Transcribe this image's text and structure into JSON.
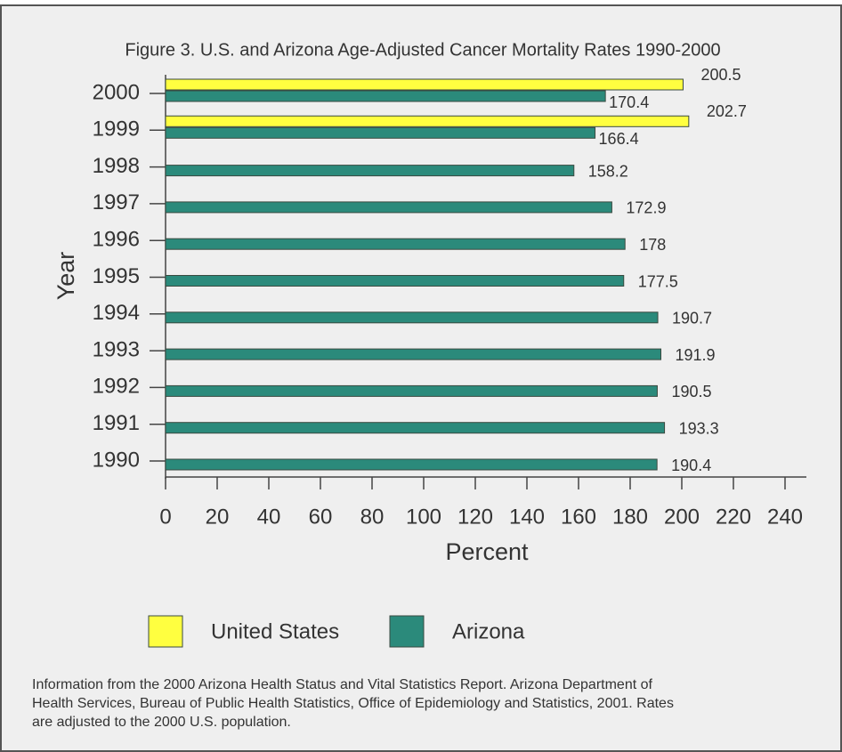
{
  "chart_data": {
    "type": "bar",
    "orientation": "horizontal",
    "title": "Figure 3. U.S. and Arizona Age-Adjusted Cancer Mortality Rates 1990-2000",
    "y_label": "Year",
    "x_label": "Percent",
    "categories": [
      "2000",
      "1999",
      "1998",
      "1997",
      "1996",
      "1995",
      "1994",
      "1993",
      "1992",
      "1991",
      "1990"
    ],
    "series": [
      {
        "name": "United States",
        "color": "#ffff40",
        "values": [
          200.5,
          202.7,
          null,
          null,
          null,
          null,
          null,
          null,
          null,
          null,
          null
        ]
      },
      {
        "name": "Arizona",
        "color": "#2b8a7b",
        "values": [
          170.4,
          166.4,
          158.2,
          172.9,
          178,
          177.5,
          190.7,
          191.9,
          190.5,
          193.3,
          190.4
        ]
      }
    ],
    "xlim": [
      0,
      240
    ],
    "xticks": [
      0,
      20,
      40,
      60,
      80,
      100,
      120,
      140,
      160,
      180,
      200,
      220,
      240
    ],
    "legend": "bottom",
    "footnote": [
      "Information from the 2000 Arizona Health Status and Vital Statistics Report.  Arizona Department of",
      "Health Services, Bureau of Public Health Statistics, Office of Epidemiology and Statistics, 2001.  Rates",
      "are adjusted to the 2000 U.S. population."
    ]
  }
}
